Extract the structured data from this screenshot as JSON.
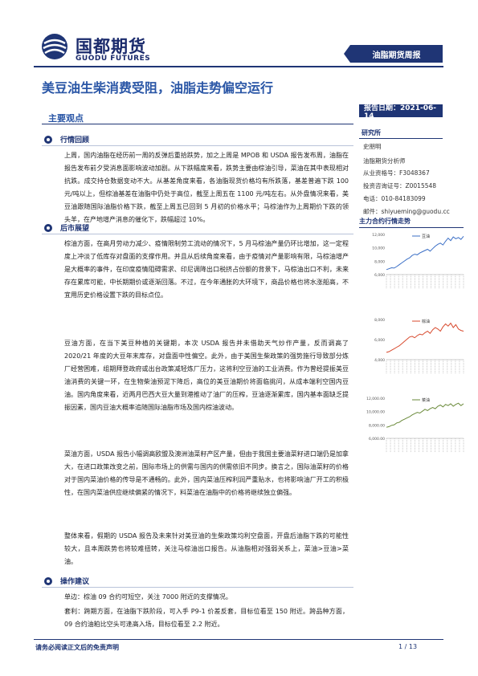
{
  "header": {
    "logo_cn": "国都期货",
    "logo_en": "GUODU FUTURES",
    "report_type": "油脂期货周报"
  },
  "title": "美豆油生柴消费受阻，油脂走势偏空运行",
  "report_date": "报告日期：2021-06-14",
  "main_section": "主要观点",
  "sections": [
    {
      "heading": "行情回顾",
      "paragraphs": [
        "上周，国内油脂在经历前一周的反弹后重拾跌势，加之上周是 MPOB 和 USDA 报告发布周，油脂在报告发布前夕受消息面影响波动加剧。从下跌幅度来看，跌势主要由棕油引导，菜油在其中表现相对抗跌。成交持仓数据变动不大。从基差角度来看，各油脂现货价格均有所跌落，基差普遍下跌 100 元/吨以上，但棕油基差在油脂中仍处于高位，截至上周五在 1100 元/吨左右。从外盘情况来看，美豆油跟随国际油脂价格下跌，截至上周五已回到 5 月初的价格水平；马棕油作为上周期价下跌的领头羊，在产地增产消息的催化下，跌幅超过 10%。"
      ]
    },
    {
      "heading": "后市展望",
      "paragraphs": [
        "棕油方面，在高月劳动力减少、疫情限制劳工流动的情况下，5 月马棕油产量仍环比增加，这一定程度上冲淡了低库存对盘面的支撑作用。并且从后续角度来看，由于疫情对产量影响有限，马棕油增产是大概率的事件，在印度疫情阻碍需求、印尼调降出口税挤占份额的背景下，马棕油出口不利，未来存在累库可能，中长期期价或逐渐回落。不过，在今年通胀的大环境下，商品价格也将水涨船高，不宜用历史价格设置下跌的目标点位。",
        "豆油方面，在当下美豆种植的关键期，本次 USDA 报告并未借助天气炒作产量，反而调高了 2020/21 年度的大豆年末库存，对盘面中性偏空。此外，由于美国生柴政策的强势施行导致部分炼厂经营困难，组期拜登政府或出台政策减轻炼厂压力，这将利空豆油的工业消费。作为曾经提振美豆油消费的关键一环，在生物柴油预泥下降后，高位的美豆油期价将面临挑问，从成本端利空国内豆油。国内角度来看，近两月巴西大豆大量到港推动了油厂的压榨，豆油逐渐累库，国内基本面缺乏提振因素，国内豆油大概率追随国际油脂市场及国内棕油波动。",
        "菜油方面，USDA 报告小幅调高欧盟及澳洲油菜籽产区产量，但由于我国主要油菜籽进口端仍是加拿大，在进口政策改变之前，国际市场上的供需与国内的供需依旧不同步。换言之，国际油菜籽的价格对于国内菜油价格的传导是不通畅的。此外，国内菜油压榨利润严重贴水，也将影响油厂开工的积极性，在国内菜油供应继续偏紧的情况下，料菜油在油脂中的价格将继续独立偏强。",
        "整体来看，假期的 USDA 报告及未来针对美豆油的生柴政策均利空盘面，开盘后油脂下跌的可能性较大，且本周跌势也将较难扭转，关注马棕油出口报告。从油脂相对强弱关系上，菜油>豆油>菜油。"
      ]
    },
    {
      "heading": "操作建议",
      "paragraphs": [
        "单边：棕油 09 合约可短空，关注 7000 附近的支撑情况。",
        "套利：跨期方面，在油脂下跌阶段，可入手 P9-1 价差反套，目标位看至 150 附近。跨品种方面，09 合约油粕比空头可逢高入场，目标位看至 2.2 附近。"
      ]
    }
  ],
  "sidebar": {
    "title": "研究所",
    "items": [
      "史朋明",
      "油脂期货分析师",
      "从业资格号：F3048367",
      "投资咨询证号：Z0015548",
      "电话：010-84183099",
      "邮件：shiyueming@guodu.cc"
    ]
  },
  "charts_title": "主力合约行情走势",
  "chart_data": [
    {
      "type": "line",
      "series": [
        {
          "name": "豆油",
          "color": "#3b6fc6",
          "values": [
            6800,
            6950,
            7100,
            7050,
            7300,
            7600,
            7900,
            8200,
            8500,
            8700,
            9100,
            9300,
            9200,
            9500,
            9700,
            9900,
            10100,
            9800,
            10200,
            10600,
            10900,
            11100,
            10800,
            11400,
            11900,
            11500,
            12100,
            11800,
            12000,
            11700,
            12200
          ]
        }
      ],
      "ylabels": [
        "12,000",
        "10,000",
        "8,000",
        "6,000"
      ],
      "ylim": [
        6000,
        12500
      ]
    },
    {
      "type": "line",
      "series": [
        {
          "name": "棕油",
          "color": "#d84a2e",
          "values": [
            5000,
            5100,
            5300,
            5500,
            5700,
            5900,
            6200,
            6500,
            6800,
            7100,
            7200,
            7000,
            7300,
            7500,
            7400,
            7700,
            7900,
            7600,
            8100,
            8400,
            8200,
            7900,
            8500,
            8900,
            8600,
            9000,
            8400,
            8800,
            8200,
            8000,
            7900
          ]
        }
      ],
      "ylabels": [
        "8,000",
        "6,000",
        "4,000"
      ],
      "ylim": [
        4000,
        9500
      ]
    },
    {
      "type": "line",
      "series": [
        {
          "name": "菜油",
          "color": "#6a8a3a",
          "values": [
            7800,
            7900,
            8100,
            8200,
            8500,
            8600,
            8900,
            9100,
            9300,
            9500,
            9800,
            10000,
            10200,
            10100,
            10400,
            10700,
            10500,
            10800,
            11000,
            10800,
            11200,
            11400,
            11100,
            11500,
            11300,
            11600,
            11200,
            11500,
            11700,
            11300,
            11600
          ]
        }
      ],
      "ylabels": [
        "12,000.00",
        "10,000.00",
        "8,000.00",
        "6,000.00"
      ],
      "ylim": [
        6000,
        12500
      ]
    }
  ],
  "footer": {
    "disclaimer": "请务必阅读正文后的免责声明",
    "page": "1 / 13"
  },
  "colors": {
    "primary": "#1f3575",
    "title": "#2a56a6"
  }
}
